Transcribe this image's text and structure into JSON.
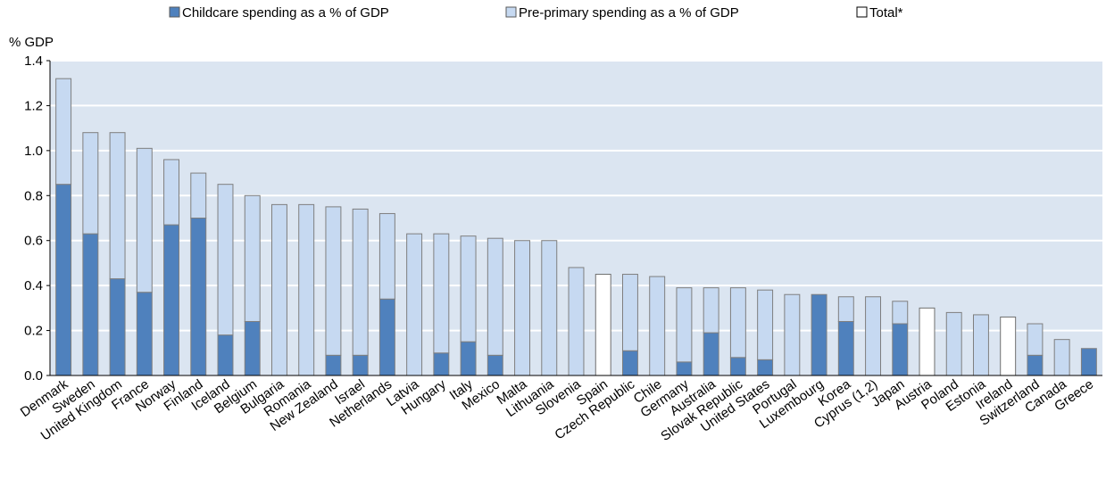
{
  "chart_data": {
    "type": "bar",
    "stacked": true,
    "y_unit_label": "% GDP",
    "ylim": [
      0,
      1.4
    ],
    "y_ticks": [
      "0.0",
      "0.2",
      "0.4",
      "0.6",
      "0.8",
      "1.0",
      "1.2",
      "1.4"
    ],
    "grid": true,
    "legend_position": "top",
    "categories": [
      "Denmark",
      "Sweden",
      "United Kingdom",
      "France",
      "Norway",
      "Finland",
      "Iceland",
      "Belgium",
      "Bulgaria",
      "Romania",
      "New Zealand",
      "Israel",
      "Netherlands",
      "Latvia",
      "Hungary",
      "Italy",
      "Mexico",
      "Malta",
      "Lithuania",
      "Slovenia",
      "Spain",
      "Czech Republic",
      "Chile",
      "Germany",
      "Australia",
      "Slovak Republic",
      "United States",
      "Portugal",
      "Luxembourg",
      "Korea",
      "Cyprus (1,2)",
      "Japan",
      "Austria",
      "Poland",
      "Estonia",
      "Ireland",
      "Switzerland",
      "Canada",
      "Greece"
    ],
    "series": [
      {
        "name": "Childcare spending as a % of GDP",
        "color": "#4f81bd",
        "values": [
          0.85,
          0.63,
          0.43,
          0.37,
          0.67,
          0.7,
          0.18,
          0.24,
          0,
          0,
          0.09,
          0.09,
          0.34,
          0,
          0.1,
          0.15,
          0.09,
          0,
          0,
          0,
          0,
          0.11,
          0,
          0.06,
          0.19,
          0.08,
          0.07,
          0,
          0.36,
          0.24,
          0,
          0.23,
          0,
          0,
          0,
          0,
          0.09,
          0,
          0.12
        ]
      },
      {
        "name": "Pre-primary spending as a % of GDP",
        "color": "#c6d9f1",
        "values": [
          0.47,
          0.45,
          0.65,
          0.64,
          0.29,
          0.2,
          0.67,
          0.56,
          0.76,
          0.76,
          0.66,
          0.65,
          0.38,
          0.63,
          0.53,
          0.47,
          0.52,
          0.6,
          0.6,
          0.48,
          0,
          0.34,
          0.44,
          0.33,
          0.2,
          0.31,
          0.31,
          0.36,
          0,
          0.11,
          0.35,
          0.1,
          0,
          0.28,
          0.27,
          0,
          0.14,
          0.16,
          0
        ]
      },
      {
        "name": "Total*",
        "color": "#ffffff",
        "values": [
          0,
          0,
          0,
          0,
          0,
          0,
          0,
          0,
          0,
          0,
          0,
          0,
          0,
          0,
          0,
          0,
          0,
          0,
          0,
          0,
          0.45,
          0,
          0,
          0,
          0,
          0,
          0,
          0,
          0,
          0,
          0,
          0,
          0.3,
          0,
          0,
          0.26,
          0,
          0,
          0
        ]
      }
    ]
  },
  "colors": {
    "plot_background": "#dbe5f1",
    "grid": "#ffffff",
    "bar_outline": "#7f7f7f"
  }
}
